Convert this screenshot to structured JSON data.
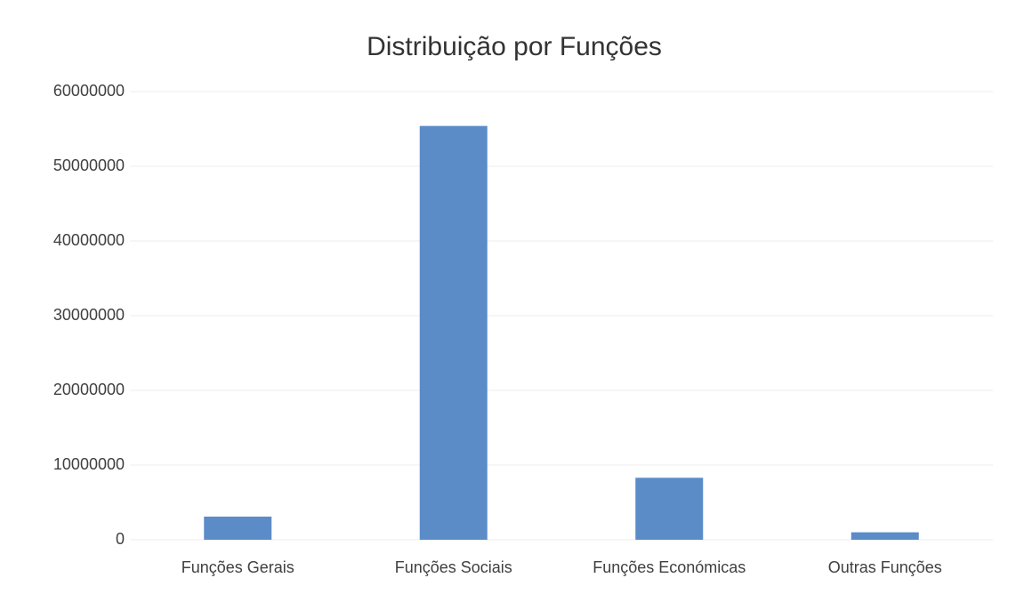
{
  "chart_data": {
    "type": "bar",
    "title": "Distribuição por Funções",
    "categories": [
      "Funções Gerais",
      "Funções Sociais",
      "Funções Económicas",
      "Outras Funções"
    ],
    "values": [
      3100000,
      55400000,
      8300000,
      1000000
    ],
    "color": "#5b8cc8",
    "ylim": [
      0,
      60000000
    ],
    "yticks": [
      0,
      10000000,
      20000000,
      30000000,
      40000000,
      50000000,
      60000000
    ],
    "grid": true
  }
}
